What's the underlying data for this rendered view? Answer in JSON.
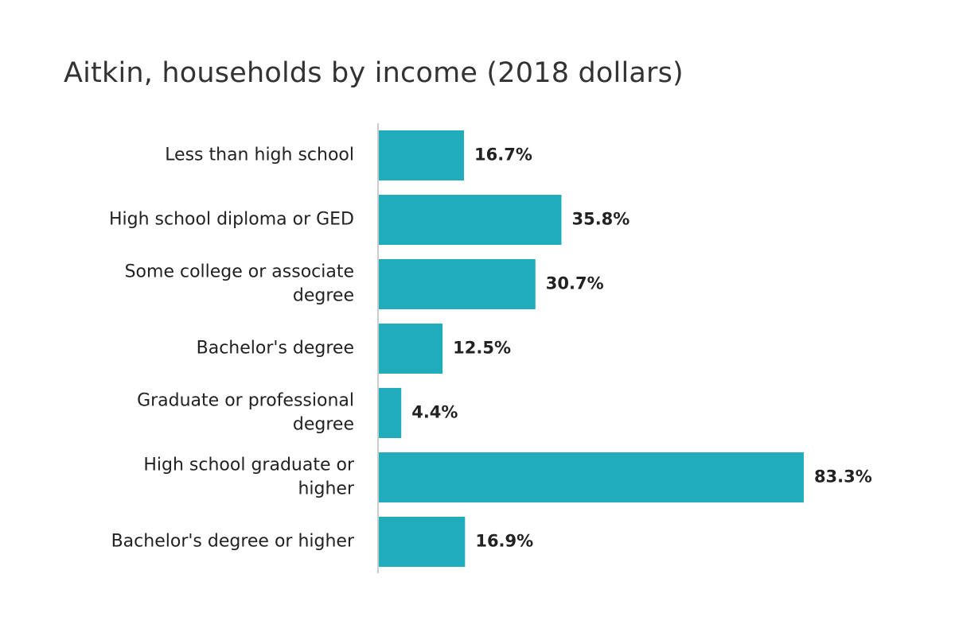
{
  "chart_data": {
    "type": "bar",
    "orientation": "horizontal",
    "title": "Aitkin, households by income (2018 dollars)",
    "categories": [
      "Less than high school",
      "High school diploma or GED",
      "Some college or associate degree",
      "Bachelor's degree",
      "Graduate or professional degree",
      "High school graduate or higher",
      "Bachelor's degree or higher"
    ],
    "values": [
      16.7,
      35.8,
      30.7,
      12.5,
      4.4,
      83.3,
      16.9
    ],
    "value_labels": [
      "16.7%",
      "35.8%",
      "30.7%",
      "12.5%",
      "4.4%",
      "83.3%",
      "16.9%"
    ],
    "xlabel": "",
    "ylabel": "",
    "xlim": [
      0,
      100
    ],
    "grid": false,
    "legend": "none",
    "bar_color": "#20ACBB",
    "axis_color": "#cccccc"
  }
}
